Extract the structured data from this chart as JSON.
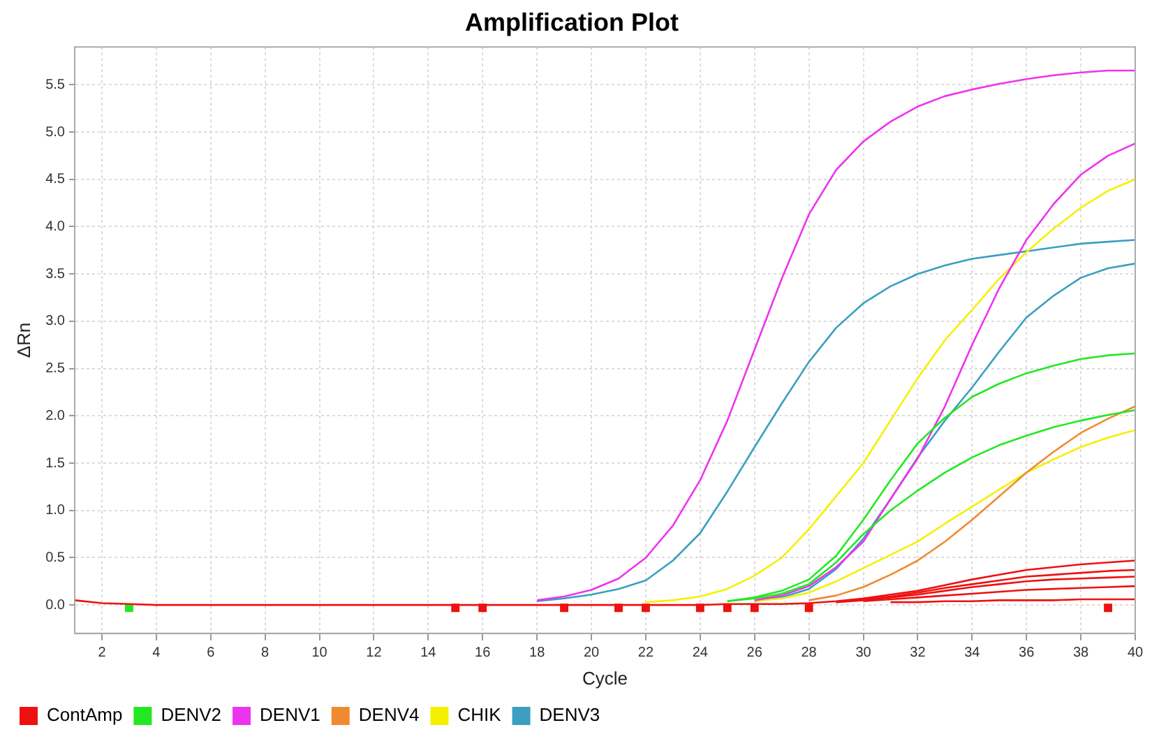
{
  "chart_data": {
    "type": "line",
    "title": "Amplification Plot",
    "xlabel": "Cycle",
    "ylabel": "ΔRn",
    "x": [
      1,
      2,
      3,
      4,
      5,
      6,
      7,
      8,
      9,
      10,
      11,
      12,
      13,
      14,
      15,
      16,
      17,
      18,
      19,
      20,
      21,
      22,
      23,
      24,
      25,
      26,
      27,
      28,
      29,
      30,
      31,
      32,
      33,
      34,
      35,
      36,
      37,
      38,
      39,
      40
    ],
    "xlim": [
      1,
      40
    ],
    "xticks": [
      2,
      4,
      6,
      8,
      10,
      12,
      14,
      16,
      18,
      20,
      22,
      24,
      26,
      28,
      30,
      32,
      34,
      36,
      38,
      40
    ],
    "ylim": [
      -0.3,
      5.9
    ],
    "yticks": [
      {
        "value": 0,
        "label": "0.0"
      },
      {
        "value": 0.5,
        "label": "0.5"
      },
      {
        "value": 1,
        "label": "1.0"
      },
      {
        "value": 1.5,
        "label": "1.5"
      },
      {
        "value": 2,
        "label": "2.0"
      },
      {
        "value": 2.5,
        "label": "2.5"
      },
      {
        "value": 3,
        "label": "3.0"
      },
      {
        "value": 3.5,
        "label": "3.5"
      },
      {
        "value": 4,
        "label": "4.0"
      },
      {
        "value": 4.5,
        "label": "4.5"
      },
      {
        "value": 5,
        "label": "5.0"
      },
      {
        "value": 5.5,
        "label": "5.5"
      }
    ],
    "grid": true,
    "legend": "bottom left",
    "marker": "none",
    "line_style": "solid",
    "series": [
      {
        "name": "ContAmp",
        "color": "#ee1111",
        "values": [
          0.05,
          0.02,
          0.01,
          0,
          0,
          0,
          0,
          0,
          0,
          0,
          0,
          0,
          0,
          0,
          0,
          0,
          0,
          0,
          0,
          0,
          0,
          0,
          0,
          0,
          0.01,
          0.01,
          0.01,
          0.02,
          0.04,
          0.07,
          0.11,
          0.15,
          0.21,
          0.27,
          0.32,
          0.37,
          0.4,
          0.43,
          0.45,
          0.47
        ]
      },
      {
        "color": "#ee1111",
        "values": [
          null,
          null,
          null,
          null,
          null,
          null,
          null,
          null,
          null,
          null,
          null,
          null,
          null,
          null,
          null,
          null,
          null,
          null,
          null,
          null,
          null,
          null,
          null,
          null,
          null,
          null,
          null,
          null,
          0.03,
          0.06,
          0.09,
          0.13,
          0.18,
          0.22,
          0.26,
          0.3,
          0.32,
          0.34,
          0.36,
          0.37
        ]
      },
      {
        "color": "#ee1111",
        "values": [
          null,
          null,
          null,
          null,
          null,
          null,
          null,
          null,
          null,
          null,
          null,
          null,
          null,
          null,
          null,
          null,
          null,
          null,
          null,
          null,
          null,
          null,
          null,
          null,
          null,
          null,
          null,
          null,
          0.03,
          0.05,
          0.08,
          0.11,
          0.15,
          0.19,
          0.22,
          0.25,
          0.27,
          0.28,
          0.29,
          0.3
        ]
      },
      {
        "color": "#ee1111",
        "values": [
          null,
          null,
          null,
          null,
          null,
          null,
          null,
          null,
          null,
          null,
          null,
          null,
          null,
          null,
          null,
          null,
          null,
          null,
          null,
          null,
          null,
          null,
          null,
          null,
          null,
          null,
          null,
          null,
          null,
          0.04,
          0.06,
          0.08,
          0.1,
          0.12,
          0.14,
          0.16,
          0.17,
          0.18,
          0.19,
          0.2
        ]
      },
      {
        "color": "#ee1111",
        "values": [
          null,
          null,
          null,
          null,
          null,
          null,
          null,
          null,
          null,
          null,
          null,
          null,
          null,
          null,
          null,
          null,
          null,
          null,
          null,
          null,
          null,
          null,
          null,
          null,
          null,
          null,
          null,
          null,
          null,
          null,
          0.03,
          0.03,
          0.04,
          0.04,
          0.05,
          0.05,
          0.05,
          0.06,
          0.06,
          0.06
        ]
      },
      {
        "name": "DENV2",
        "color": "#22e822",
        "values": [
          null,
          null,
          null,
          null,
          null,
          null,
          null,
          null,
          null,
          null,
          null,
          null,
          null,
          null,
          null,
          null,
          null,
          null,
          null,
          null,
          null,
          null,
          null,
          null,
          0.04,
          0.08,
          0.15,
          0.27,
          0.52,
          0.9,
          1.32,
          1.71,
          1.98,
          2.2,
          2.34,
          2.45,
          2.53,
          2.6,
          2.64,
          2.66
        ]
      },
      {
        "color": "#22e822",
        "values": [
          null,
          null,
          null,
          null,
          null,
          null,
          null,
          null,
          null,
          null,
          null,
          null,
          null,
          null,
          null,
          null,
          null,
          null,
          null,
          null,
          null,
          null,
          null,
          null,
          0.04,
          0.07,
          0.12,
          0.22,
          0.45,
          0.75,
          1.0,
          1.21,
          1.4,
          1.56,
          1.69,
          1.79,
          1.88,
          1.95,
          2.01,
          2.06
        ]
      },
      {
        "name": "DENV1",
        "color": "#ee33ee",
        "values": [
          null,
          null,
          null,
          null,
          null,
          null,
          null,
          null,
          null,
          null,
          null,
          null,
          null,
          null,
          null,
          null,
          null,
          0.05,
          0.09,
          0.16,
          0.28,
          0.5,
          0.84,
          1.32,
          1.95,
          2.7,
          3.45,
          4.13,
          4.6,
          4.9,
          5.11,
          5.27,
          5.38,
          5.45,
          5.51,
          5.56,
          5.6,
          5.63,
          5.65,
          5.65
        ]
      },
      {
        "color": "#ee33ee",
        "values": [
          null,
          null,
          null,
          null,
          null,
          null,
          null,
          null,
          null,
          null,
          null,
          null,
          null,
          null,
          null,
          null,
          null,
          null,
          null,
          null,
          null,
          null,
          null,
          null,
          null,
          0.05,
          0.1,
          0.2,
          0.4,
          0.67,
          1.12,
          1.55,
          2.1,
          2.75,
          3.35,
          3.86,
          4.24,
          4.55,
          4.75,
          4.88
        ]
      },
      {
        "name": "DENV4",
        "color": "#f08a30",
        "values": [
          null,
          null,
          null,
          null,
          null,
          null,
          null,
          null,
          null,
          null,
          null,
          null,
          null,
          null,
          null,
          null,
          null,
          null,
          null,
          null,
          null,
          null,
          null,
          null,
          null,
          null,
          null,
          0.05,
          0.1,
          0.19,
          0.32,
          0.47,
          0.67,
          0.9,
          1.15,
          1.4,
          1.62,
          1.82,
          1.97,
          2.1
        ]
      },
      {
        "name": "CHIK",
        "color": "#f5f000",
        "values": [
          null,
          null,
          null,
          null,
          null,
          null,
          null,
          null,
          null,
          null,
          null,
          null,
          null,
          null,
          null,
          null,
          null,
          null,
          null,
          null,
          null,
          0.03,
          0.05,
          0.09,
          0.17,
          0.31,
          0.5,
          0.8,
          1.15,
          1.5,
          1.95,
          2.4,
          2.8,
          3.12,
          3.45,
          3.73,
          3.98,
          4.2,
          4.38,
          4.5
        ]
      },
      {
        "color": "#f5f000",
        "values": [
          null,
          null,
          null,
          null,
          null,
          null,
          null,
          null,
          null,
          null,
          null,
          null,
          null,
          null,
          null,
          null,
          null,
          null,
          null,
          null,
          null,
          null,
          null,
          null,
          null,
          0.04,
          0.07,
          0.13,
          0.25,
          0.39,
          0.53,
          0.67,
          0.86,
          1.04,
          1.22,
          1.4,
          1.54,
          1.67,
          1.77,
          1.85
        ]
      },
      {
        "name": "DENV3",
        "color": "#3a9fc0",
        "values": [
          null,
          null,
          null,
          null,
          null,
          null,
          null,
          null,
          null,
          null,
          null,
          null,
          null,
          null,
          null,
          null,
          null,
          0.04,
          0.07,
          0.11,
          0.17,
          0.26,
          0.47,
          0.76,
          1.2,
          1.67,
          2.13,
          2.57,
          2.93,
          3.19,
          3.37,
          3.5,
          3.59,
          3.66,
          3.7,
          3.74,
          3.78,
          3.82,
          3.84,
          3.86
        ]
      },
      {
        "color": "#3a9fc0",
        "values": [
          null,
          null,
          null,
          null,
          null,
          null,
          null,
          null,
          null,
          null,
          null,
          null,
          null,
          null,
          null,
          null,
          null,
          null,
          null,
          null,
          null,
          null,
          null,
          null,
          null,
          0.04,
          0.08,
          0.17,
          0.38,
          0.7,
          1.12,
          1.56,
          1.95,
          2.3,
          2.68,
          3.04,
          3.27,
          3.46,
          3.56,
          3.61
        ]
      },
      {
        "type": "scatter",
        "marker": "square",
        "color": "#ee1111",
        "x": [
          15,
          16,
          19,
          21,
          22,
          24,
          25,
          26,
          28,
          39
        ],
        "values": [
          -0.03,
          -0.03,
          -0.03,
          -0.03,
          -0.03,
          -0.03,
          -0.03,
          -0.03,
          -0.03,
          -0.03
        ]
      },
      {
        "type": "scatter",
        "marker": "square",
        "color": "#22e822",
        "x": [
          3
        ],
        "values": [
          -0.03
        ]
      }
    ]
  }
}
